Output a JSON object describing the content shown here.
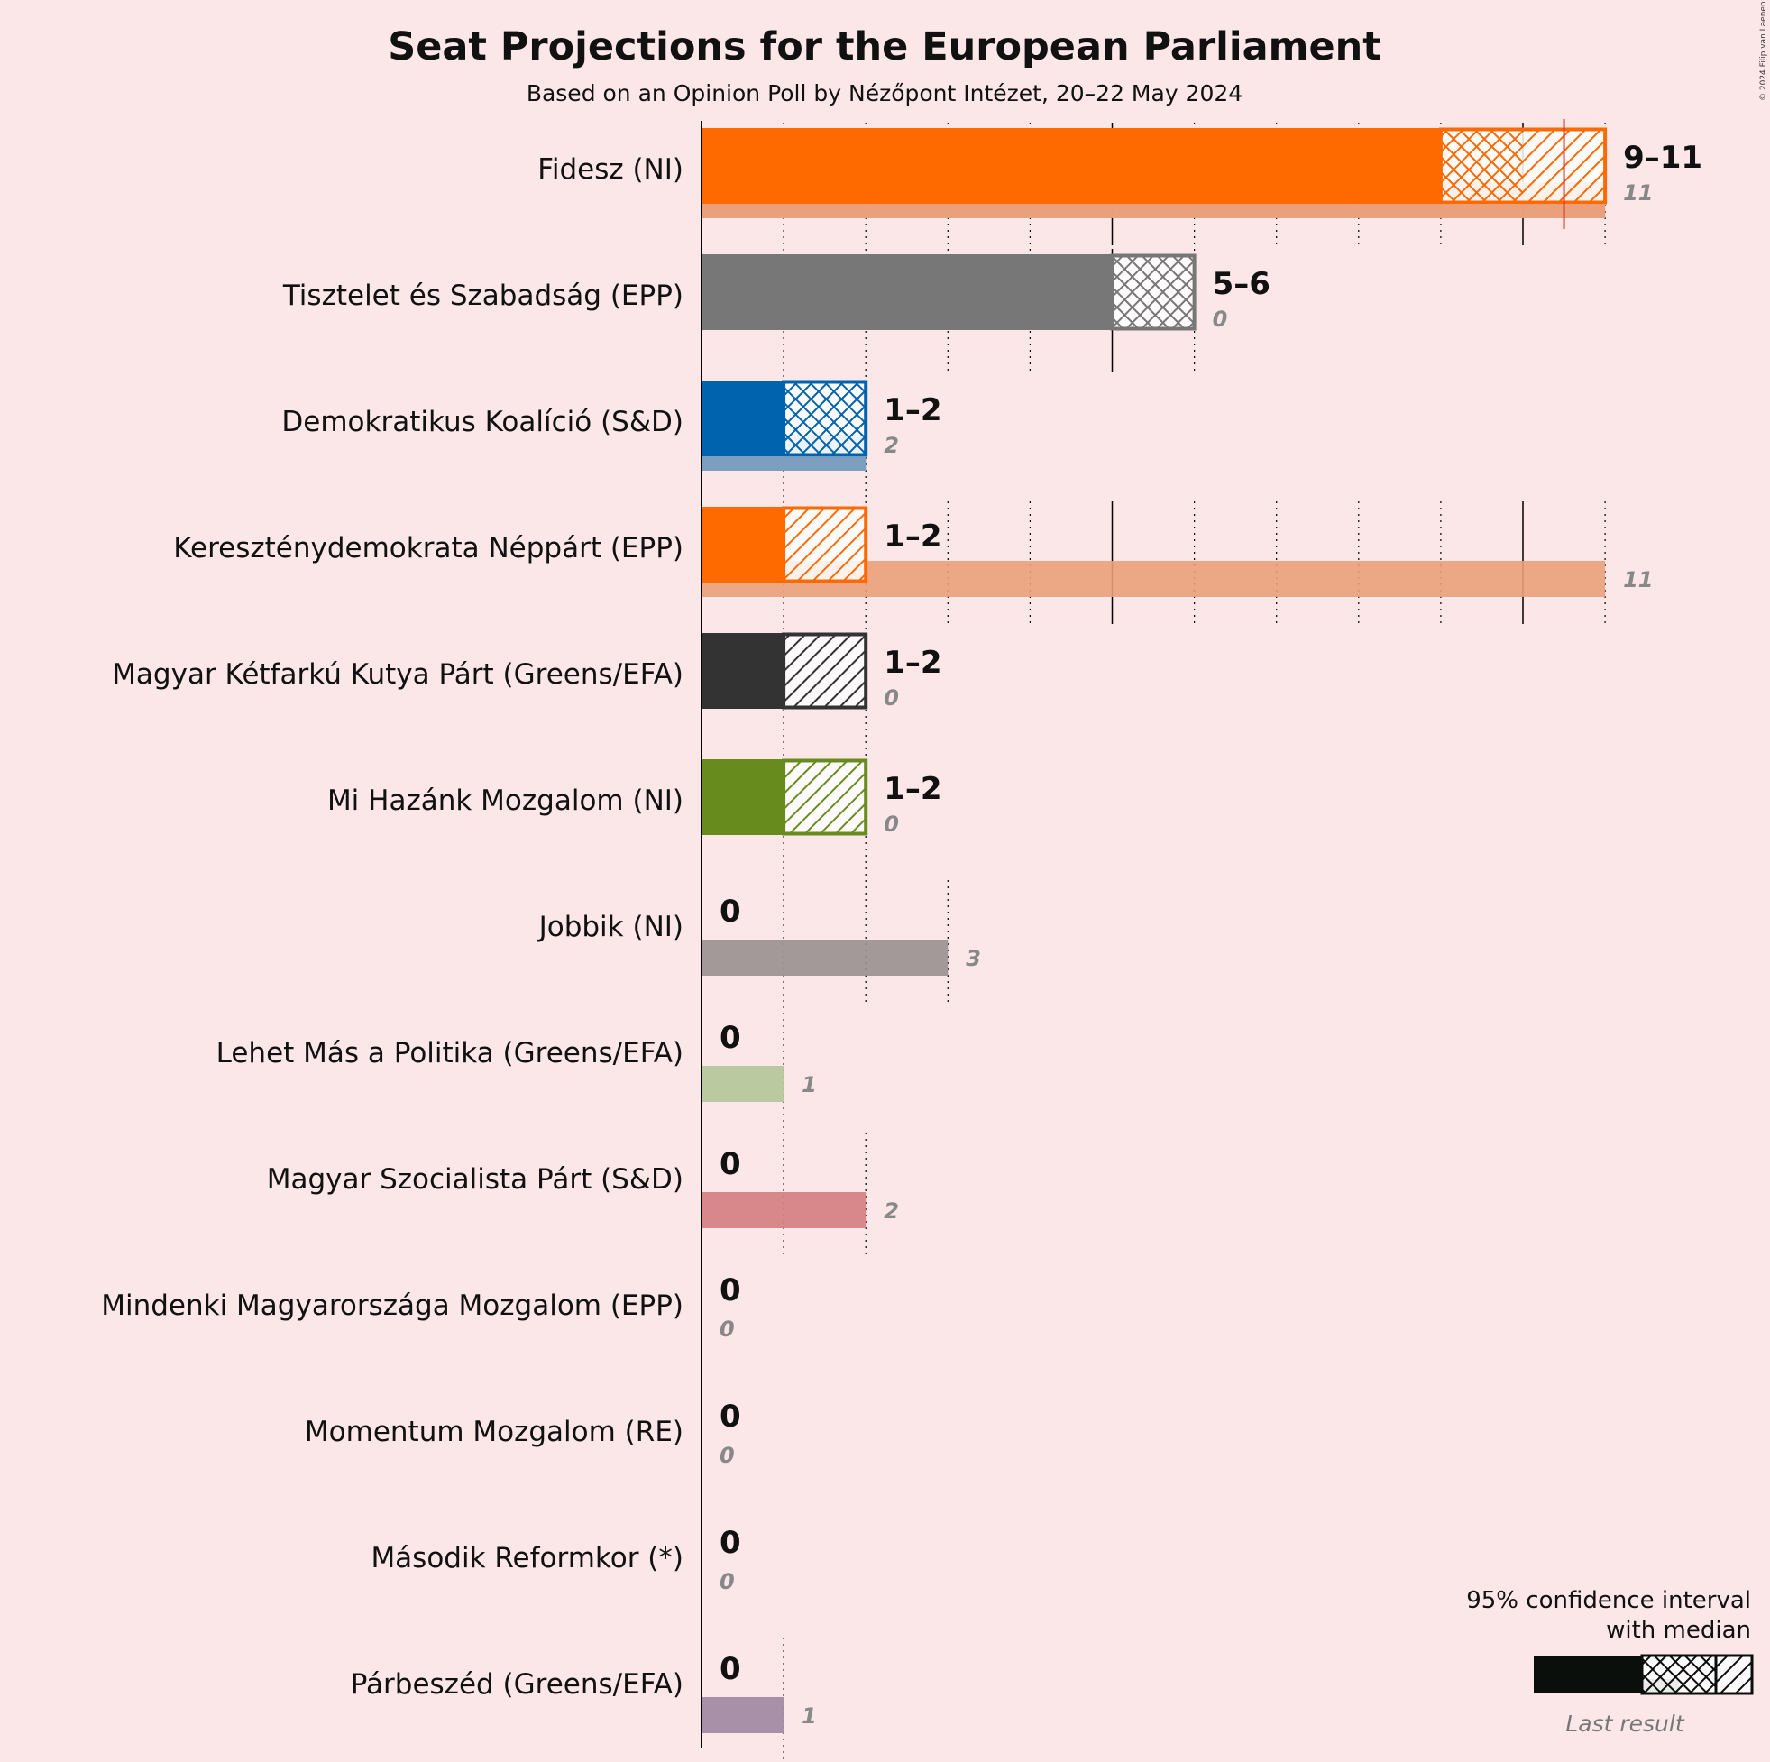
{
  "title": "Seat Projections for the European Parliament",
  "subtitle": "Based on an Opinion Poll by Nézőpont Intézet, 20–22 May 2024",
  "copyright": "© 2024 Filip van Laenen",
  "legend": {
    "ci_line1": "95% confidence interval",
    "ci_line2": "with median",
    "last_result": "Last result"
  },
  "colors": {
    "background": "#fbe6e8",
    "majority_line": "#d9312b"
  },
  "chart_data": {
    "type": "bar",
    "title": "Seat Projections for the European Parliament",
    "subtitle": "Based on an Opinion Poll by Nézőpont Intézet, 20–22 May 2024",
    "xlim": [
      0,
      11
    ],
    "majority_threshold": 10.5,
    "grid": "dotted vertical lines at every seat, solid every 5",
    "legend_position": "bottom-right",
    "parties": [
      {
        "name": "Fidesz (NI)",
        "color": "#ff6a00",
        "last_color": "#eaa07a",
        "low": 9,
        "median": 10,
        "high": 11,
        "range_label": "9–11",
        "last": 11,
        "last_label": "11"
      },
      {
        "name": "Tisztelet és Szabadság (EPP)",
        "color": "#777777",
        "last_color": "#aaaaaa",
        "low": 5,
        "median": 6,
        "high": 6,
        "range_label": "5–6",
        "last": 0,
        "last_label": "0"
      },
      {
        "name": "Demokratikus Koalíció (S&D)",
        "color": "#0063ae",
        "last_color": "#7b9fc0",
        "low": 1,
        "median": 2,
        "high": 2,
        "range_label": "1–2",
        "last": 2,
        "last_label": "2"
      },
      {
        "name": "Kereszténydemokrata Néppárt (EPP)",
        "color": "#ff6a00",
        "last_color": "#eaa07a",
        "low": 1,
        "median": 1,
        "high": 2,
        "range_label": "1–2",
        "last": 11,
        "last_label": "11"
      },
      {
        "name": "Magyar Kétfarkú Kutya Párt (Greens/EFA)",
        "color": "#333333",
        "last_color": "#999999",
        "low": 1,
        "median": 1,
        "high": 2,
        "range_label": "1–2",
        "last": 0,
        "last_label": "0"
      },
      {
        "name": "Mi Hazánk Mozgalom (NI)",
        "color": "#688b1d",
        "last_color": "#a8bb88",
        "low": 1,
        "median": 1,
        "high": 2,
        "range_label": "1–2",
        "last": 0,
        "last_label": "0"
      },
      {
        "name": "Jobbik (NI)",
        "color": "#999090",
        "last_color": "#9a9090",
        "low": 0,
        "median": 0,
        "high": 0,
        "range_label": "0",
        "last": 3,
        "last_label": "3"
      },
      {
        "name": "Lehet Más a Politika (Greens/EFA)",
        "color": "#b3c598",
        "last_color": "#b3c598",
        "low": 0,
        "median": 0,
        "high": 0,
        "range_label": "0",
        "last": 1,
        "last_label": "1"
      },
      {
        "name": "Magyar Szocialista Párt (S&D)",
        "color": "#d47d80",
        "last_color": "#d47d80",
        "low": 0,
        "median": 0,
        "high": 0,
        "range_label": "0",
        "last": 2,
        "last_label": "2"
      },
      {
        "name": "Mindenki Magyarországa Mozgalom (EPP)",
        "color": "#888888",
        "last_color": "#aaaaaa",
        "low": 0,
        "median": 0,
        "high": 0,
        "range_label": "0",
        "last": 0,
        "last_label": "0"
      },
      {
        "name": "Momentum Mozgalom (RE)",
        "color": "#888888",
        "last_color": "#aaaaaa",
        "low": 0,
        "median": 0,
        "high": 0,
        "range_label": "0",
        "last": 0,
        "last_label": "0"
      },
      {
        "name": "Második Reformkor (*)",
        "color": "#888888",
        "last_color": "#aaaaaa",
        "low": 0,
        "median": 0,
        "high": 0,
        "range_label": "0",
        "last": 0,
        "last_label": "0"
      },
      {
        "name": "Párbeszéd (Greens/EFA)",
        "color": "#9e87a1",
        "last_color": "#9e87a1",
        "low": 0,
        "median": 0,
        "high": 0,
        "range_label": "0",
        "last": 1,
        "last_label": "1"
      }
    ]
  }
}
